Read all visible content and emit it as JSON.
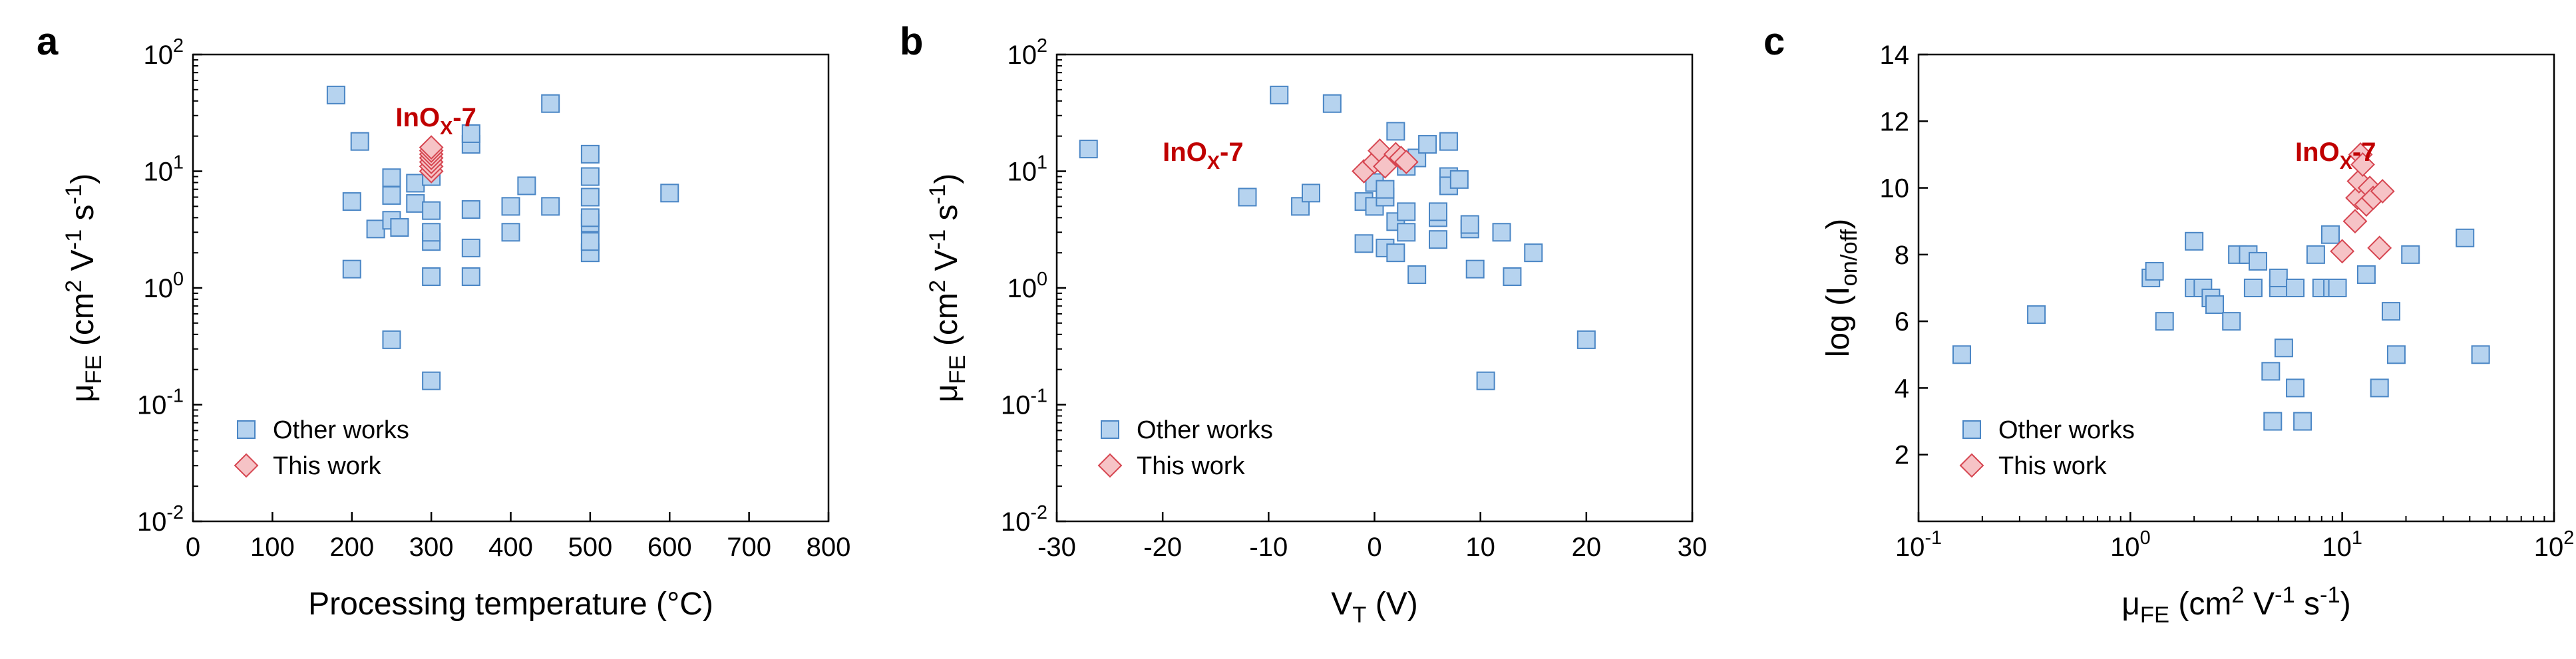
{
  "chart_data": [
    {
      "panel": "a",
      "type": "scatter",
      "title": "",
      "xlabel": "Processing temperature (°C)",
      "ylabel_parts": {
        "main": "μ",
        "sub": "FE",
        "rest": " (cm",
        "sup1": "2",
        "mid": " V",
        "sup2": "-1",
        "mid2": " s",
        "sup3": "-1",
        "end": ")"
      },
      "xlim": [
        0,
        800
      ],
      "ylim": [
        0.01,
        100
      ],
      "yscale": "log",
      "x_ticks": [
        "0",
        "100",
        "200",
        "300",
        "400",
        "500",
        "600",
        "700",
        "800"
      ],
      "y_ticks": [
        {
          "base": "10",
          "exp": "-2"
        },
        {
          "base": "10",
          "exp": "-1"
        },
        {
          "base": "10",
          "exp": "0"
        },
        {
          "base": "10",
          "exp": "1"
        },
        {
          "base": "10",
          "exp": "2"
        }
      ],
      "legend_position": "bottom-left",
      "annotation": {
        "main": "InO",
        "sub": "X",
        "end": "-7"
      },
      "series": [
        {
          "name": "Other works",
          "color": "#b6d3ef",
          "edge": "#4a86c5",
          "marker": "square",
          "points": [
            [
              180,
              45
            ],
            [
              200,
              1.45
            ],
            [
              200,
              5.5
            ],
            [
              210,
              18
            ],
            [
              230,
              3.2
            ],
            [
              250,
              3.8
            ],
            [
              250,
              6.2
            ],
            [
              250,
              8.8
            ],
            [
              250,
              0.36
            ],
            [
              260,
              3.3
            ],
            [
              280,
              7.9
            ],
            [
              280,
              5.3
            ],
            [
              300,
              0.16
            ],
            [
              300,
              1.25
            ],
            [
              300,
              2.5
            ],
            [
              300,
              3.0
            ],
            [
              300,
              4.6
            ],
            [
              300,
              9.0
            ],
            [
              350,
              1.25
            ],
            [
              350,
              2.2
            ],
            [
              350,
              4.7
            ],
            [
              350,
              17
            ],
            [
              350,
              21
            ],
            [
              400,
              3.0
            ],
            [
              400,
              5.0
            ],
            [
              420,
              7.5
            ],
            [
              450,
              5.0
            ],
            [
              450,
              38
            ],
            [
              500,
              2.0
            ],
            [
              500,
              2.5
            ],
            [
              500,
              3.6
            ],
            [
              500,
              4.0
            ],
            [
              500,
              6.0
            ],
            [
              500,
              9.0
            ],
            [
              500,
              14
            ],
            [
              600,
              6.5
            ]
          ]
        },
        {
          "name": "This work",
          "color": "#f6c3c6",
          "edge": "#d64550",
          "marker": "diamond",
          "points": [
            [
              300,
              10
            ],
            [
              300,
              11
            ],
            [
              300,
              12
            ],
            [
              300,
              13
            ],
            [
              300,
              14
            ],
            [
              300,
              15
            ],
            [
              300,
              16
            ]
          ]
        }
      ]
    },
    {
      "panel": "b",
      "type": "scatter",
      "title": "",
      "xlabel_parts": {
        "main": "V",
        "sub": "T",
        "end": " (V)"
      },
      "ylabel_parts": {
        "main": "μ",
        "sub": "FE",
        "rest": " (cm",
        "sup1": "2",
        "mid": " V",
        "sup2": "-1",
        "mid2": " s",
        "sup3": "-1",
        "end": ")"
      },
      "xlim": [
        -30,
        30
      ],
      "ylim": [
        0.01,
        100
      ],
      "yscale": "log",
      "x_ticks": [
        "-30",
        "-20",
        "-10",
        "0",
        "10",
        "20",
        "30"
      ],
      "y_ticks": [
        {
          "base": "10",
          "exp": "-2"
        },
        {
          "base": "10",
          "exp": "-1"
        },
        {
          "base": "10",
          "exp": "0"
        },
        {
          "base": "10",
          "exp": "1"
        },
        {
          "base": "10",
          "exp": "2"
        }
      ],
      "legend_position": "bottom-left",
      "annotation": {
        "main": "InO",
        "sub": "X",
        "end": "-7"
      },
      "series": [
        {
          "name": "Other works",
          "color": "#b6d3ef",
          "edge": "#4a86c5",
          "marker": "square",
          "points": [
            [
              -27,
              15.5
            ],
            [
              -12,
              6
            ],
            [
              -9,
              45
            ],
            [
              -7,
              5
            ],
            [
              -6,
              6.5
            ],
            [
              -4,
              38
            ],
            [
              -1,
              5.5
            ],
            [
              -1,
              2.4
            ],
            [
              0,
              8
            ],
            [
              0,
              5
            ],
            [
              1,
              6
            ],
            [
              1,
              7
            ],
            [
              1,
              2.2
            ],
            [
              2,
              22
            ],
            [
              2,
              2.0
            ],
            [
              2,
              3.7
            ],
            [
              3,
              4.5
            ],
            [
              3,
              3.0
            ],
            [
              3,
              11
            ],
            [
              4,
              1.3
            ],
            [
              4,
              13
            ],
            [
              5,
              17
            ],
            [
              6,
              2.6
            ],
            [
              6,
              4.0
            ],
            [
              6,
              4.5
            ],
            [
              7,
              9.0
            ],
            [
              7,
              7.5
            ],
            [
              7,
              18
            ],
            [
              8,
              8.5
            ],
            [
              9,
              3.2
            ],
            [
              9,
              3.5
            ],
            [
              9.5,
              1.45
            ],
            [
              10.5,
              0.16
            ],
            [
              12,
              3.0
            ],
            [
              13,
              1.25
            ],
            [
              15,
              2.0
            ],
            [
              20,
              0.36
            ]
          ]
        },
        {
          "name": "This work",
          "color": "#f6c3c6",
          "edge": "#d64550",
          "marker": "diamond",
          "points": [
            [
              -1,
              10
            ],
            [
              0,
              12
            ],
            [
              0.5,
              15
            ],
            [
              1,
              11
            ],
            [
              2,
              14
            ],
            [
              2.5,
              13
            ],
            [
              3,
              12
            ]
          ]
        }
      ]
    },
    {
      "panel": "c",
      "type": "scatter",
      "title": "",
      "xlabel_parts": {
        "main": "μ",
        "sub": "FE",
        "rest": " (cm",
        "sup1": "2",
        "mid": " V",
        "sup2": "-1",
        "mid2": " s",
        "sup3": "-1",
        "end": ")"
      },
      "ylabel_parts": {
        "main": "log (I",
        "sub": "on/off",
        "end": ")"
      },
      "xlim": [
        0.1,
        100
      ],
      "xscale": "log",
      "ylim": [
        0,
        14
      ],
      "x_ticks": [
        {
          "base": "10",
          "exp": "-1"
        },
        {
          "base": "10",
          "exp": "0"
        },
        {
          "base": "10",
          "exp": "1"
        },
        {
          "base": "10",
          "exp": "2"
        }
      ],
      "y_ticks": [
        "2",
        "4",
        "6",
        "8",
        "10",
        "12",
        "14"
      ],
      "legend_position": "bottom-left",
      "annotation": {
        "main": "InO",
        "sub": "X",
        "end": "-7"
      },
      "series": [
        {
          "name": "Other works",
          "color": "#b6d3ef",
          "edge": "#4a86c5",
          "marker": "square",
          "points": [
            [
              0.16,
              5.0
            ],
            [
              0.36,
              6.2
            ],
            [
              1.25,
              7.3
            ],
            [
              1.3,
              7.5
            ],
            [
              1.45,
              6.0
            ],
            [
              2.0,
              7.0
            ],
            [
              2.0,
              8.4
            ],
            [
              2.2,
              7.0
            ],
            [
              2.4,
              6.7
            ],
            [
              2.5,
              6.5
            ],
            [
              3.0,
              6.0
            ],
            [
              3.2,
              8.0
            ],
            [
              3.6,
              8.0
            ],
            [
              3.8,
              7.0
            ],
            [
              4.0,
              7.8
            ],
            [
              4.6,
              4.5
            ],
            [
              4.7,
              3.0
            ],
            [
              5.0,
              7.0
            ],
            [
              5.0,
              7.3
            ],
            [
              5.3,
              5.2
            ],
            [
              6.0,
              4.0
            ],
            [
              6.0,
              7.0
            ],
            [
              6.5,
              3.0
            ],
            [
              7.5,
              8.0
            ],
            [
              8.0,
              7.0
            ],
            [
              8.8,
              8.6
            ],
            [
              9.0,
              7.0
            ],
            [
              9.5,
              7.0
            ],
            [
              13,
              7.4
            ],
            [
              15,
              4.0
            ],
            [
              17,
              6.3
            ],
            [
              18,
              5.0
            ],
            [
              21,
              8.0
            ],
            [
              38,
              8.5
            ],
            [
              45,
              5.0
            ]
          ]
        },
        {
          "name": "This work",
          "color": "#f6c3c6",
          "edge": "#d64550",
          "marker": "diamond",
          "points": [
            [
              10,
              8.1
            ],
            [
              11.5,
              9.0
            ],
            [
              11.8,
              9.7
            ],
            [
              12,
              10.2
            ],
            [
              12.2,
              11.0
            ],
            [
              12.5,
              10.7
            ],
            [
              13,
              9.5
            ],
            [
              13.5,
              10.0
            ],
            [
              14,
              9.7
            ],
            [
              15,
              8.2
            ],
            [
              15.5,
              9.9
            ]
          ]
        }
      ]
    }
  ]
}
